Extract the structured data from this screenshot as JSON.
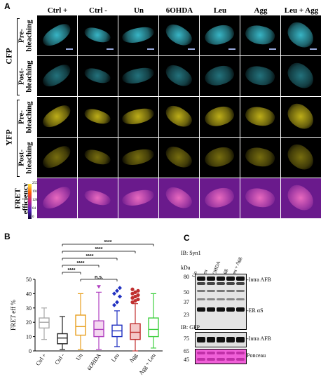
{
  "panel_a": {
    "letter": "A",
    "columns": [
      "Ctrl +",
      "Ctrl -",
      "Un",
      "6OHDA",
      "Leu",
      "Agg",
      "Leu + Agg"
    ],
    "groups": [
      {
        "name": "CFP",
        "rows": [
          "Pre-\nbleaching",
          "Post-\nbleaching"
        ],
        "color": "#3bbfd0"
      },
      {
        "name": "YFP",
        "rows": [
          "Pre-\nbleaching",
          "Post-\nbleaching"
        ],
        "color": "#c8b81a"
      },
      {
        "name": "",
        "rows": [
          "FRET\nefficiency"
        ],
        "color": "#c050c8"
      }
    ],
    "colorbar_ticks": [
      "255",
      "191",
      "128",
      "64",
      "0"
    ]
  },
  "panel_b": {
    "letter": "B",
    "chart_data": {
      "type": "box",
      "ylabel": "FRET eff %",
      "ylim": [
        0,
        50
      ],
      "yticks": [
        0,
        10,
        20,
        30,
        40,
        50
      ],
      "categories": [
        "Ctrl +",
        "Ctrl -",
        "Un",
        "6OHDA",
        "Leu",
        "Agg",
        "Agg + Leu"
      ],
      "colors": [
        "#a8a8a8",
        "#222222",
        "#e8a020",
        "#b040c0",
        "#2030c0",
        "#c03030",
        "#40d040"
      ],
      "boxes": [
        {
          "min": 8,
          "q1": 16,
          "median": 20,
          "q3": 23,
          "max": 30
        },
        {
          "min": 1,
          "q1": 5,
          "median": 9,
          "q3": 12,
          "max": 24
        },
        {
          "min": 1,
          "q1": 11,
          "median": 17,
          "q3": 25,
          "max": 40
        },
        {
          "min": 1,
          "q1": 10,
          "median": 15,
          "q3": 21,
          "max": 41
        },
        {
          "min": 3,
          "q1": 10,
          "median": 14,
          "q3": 18,
          "max": 28
        },
        {
          "min": 0,
          "q1": 8,
          "median": 13,
          "q3": 19,
          "max": 33
        },
        {
          "min": 2,
          "q1": 10,
          "median": 15,
          "q3": 23,
          "max": 40
        }
      ],
      "outliers": [
        {
          "category": "6OHDA",
          "values": [
            45
          ]
        },
        {
          "category": "Leu",
          "values": [
            32,
            34,
            38,
            40,
            42,
            44
          ]
        },
        {
          "category": "Agg",
          "values": [
            34,
            35,
            36,
            37,
            38,
            39,
            40,
            41,
            42,
            43
          ]
        }
      ],
      "significance": [
        {
          "from": "Ctrl -",
          "to": "Agg + Leu",
          "label": "****"
        },
        {
          "from": "Ctrl -",
          "to": "Agg",
          "label": "****"
        },
        {
          "from": "Ctrl -",
          "to": "Leu",
          "label": "****"
        },
        {
          "from": "Ctrl -",
          "to": "6OHDA",
          "label": "****"
        },
        {
          "from": "Ctrl -",
          "to": "Un",
          "label": "****"
        },
        {
          "from": "Un",
          "to": "Leu",
          "label": "n.s."
        }
      ]
    }
  },
  "panel_c": {
    "letter": "C",
    "ib1": "IB: Syn1",
    "kda": "kDa",
    "lanes": [
      "Un",
      "Leu",
      "6OHDA",
      "Agg",
      "Leu + Agg"
    ],
    "markers1": [
      "80",
      "50",
      "37",
      "23"
    ],
    "band_labels1": [
      "-Intra AFB",
      "-ER αS"
    ],
    "ib2": "IB: GFP",
    "markers2": [
      "75"
    ],
    "band_label2": "-Intra AFB",
    "markers3": [
      "65",
      "45"
    ],
    "ponceau": "Ponceau"
  }
}
